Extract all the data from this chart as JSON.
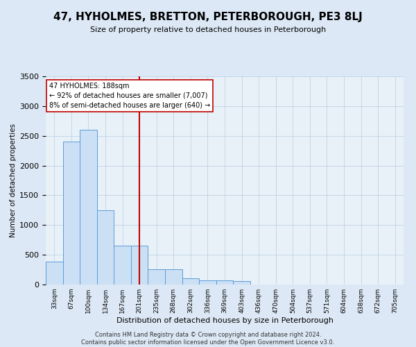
{
  "title": "47, HYHOLMES, BRETTON, PETERBOROUGH, PE3 8LJ",
  "subtitle": "Size of property relative to detached houses in Peterborough",
  "xlabel": "Distribution of detached houses by size in Peterborough",
  "ylabel": "Number of detached properties",
  "categories": [
    "33sqm",
    "67sqm",
    "100sqm",
    "134sqm",
    "167sqm",
    "201sqm",
    "235sqm",
    "268sqm",
    "302sqm",
    "336sqm",
    "369sqm",
    "403sqm",
    "436sqm",
    "470sqm",
    "504sqm",
    "537sqm",
    "571sqm",
    "604sqm",
    "638sqm",
    "672sqm",
    "705sqm"
  ],
  "values": [
    380,
    2400,
    2600,
    1250,
    650,
    650,
    260,
    260,
    105,
    65,
    65,
    55,
    0,
    0,
    0,
    0,
    0,
    0,
    0,
    0,
    0
  ],
  "bar_color": "#cce0f5",
  "bar_edge_color": "#5b9bd5",
  "vline_color": "#c00000",
  "annotation_text": "47 HYHOLMES: 188sqm\n← 92% of detached houses are smaller (7,007)\n8% of semi-detached houses are larger (640) →",
  "annotation_box_color": "#ffffff",
  "annotation_box_edge": "#c00000",
  "ylim": [
    0,
    3500
  ],
  "yticks": [
    0,
    500,
    1000,
    1500,
    2000,
    2500,
    3000,
    3500
  ],
  "footer": "Contains HM Land Registry data © Crown copyright and database right 2024.\nContains public sector information licensed under the Open Government Licence v3.0.",
  "bg_color": "#dce8f5",
  "plot_bg_color": "#e8f1f8",
  "vline_pos": 5.0
}
